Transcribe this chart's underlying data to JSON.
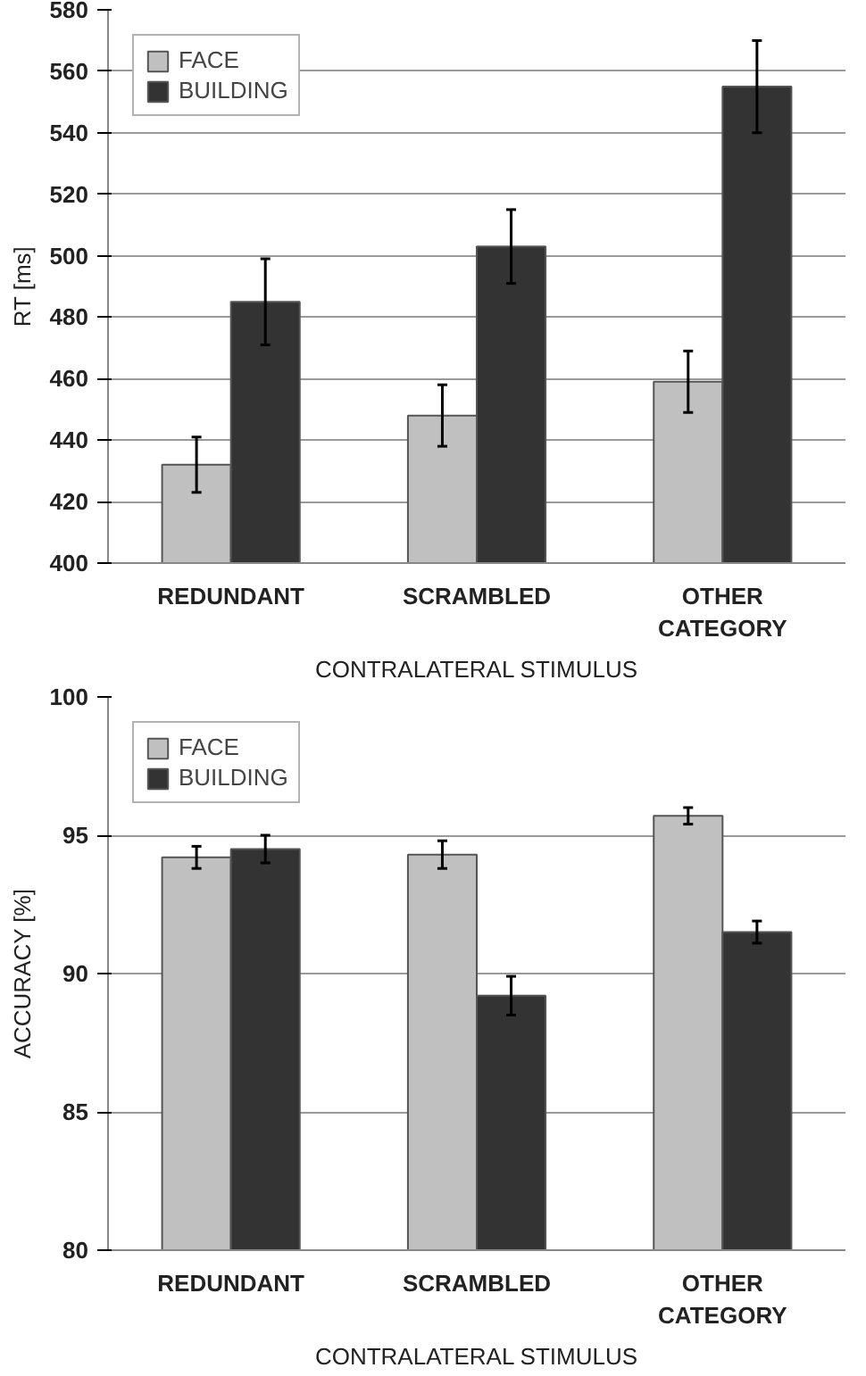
{
  "chart_data": [
    {
      "type": "bar",
      "categories": [
        "REDUNDANT",
        "SCRAMBLED",
        "OTHER\nCATEGORY"
      ],
      "xlabel": "CONTRALATERAL STIMULUS",
      "ylabel": "RT [ms]",
      "ylim": [
        400,
        580
      ],
      "yticks": [
        400,
        420,
        440,
        460,
        480,
        500,
        520,
        540,
        560,
        580
      ],
      "grid": "y",
      "legend": "top left",
      "series": [
        {
          "name": "FACE",
          "color": "#c0c0c0",
          "values": [
            432,
            448,
            459
          ],
          "errors": [
            9,
            10,
            10
          ]
        },
        {
          "name": "BUILDING",
          "color": "#333333",
          "values": [
            485,
            503,
            555
          ],
          "errors": [
            14,
            12,
            15
          ]
        }
      ]
    },
    {
      "type": "bar",
      "categories": [
        "REDUNDANT",
        "SCRAMBLED",
        "OTHER\nCATEGORY"
      ],
      "xlabel": "CONTRALATERAL STIMULUS",
      "ylabel": "ACCURACY [%]",
      "ylim": [
        80,
        100
      ],
      "yticks": [
        80,
        85,
        90,
        95,
        100
      ],
      "grid": "y",
      "legend": "top left",
      "series": [
        {
          "name": "FACE",
          "color": "#c0c0c0",
          "values": [
            94.2,
            94.3,
            95.7
          ],
          "errors": [
            0.4,
            0.5,
            0.3
          ]
        },
        {
          "name": "BUILDING",
          "color": "#333333",
          "values": [
            94.5,
            89.2,
            91.5
          ],
          "errors": [
            0.5,
            0.7,
            0.4
          ]
        }
      ]
    }
  ]
}
